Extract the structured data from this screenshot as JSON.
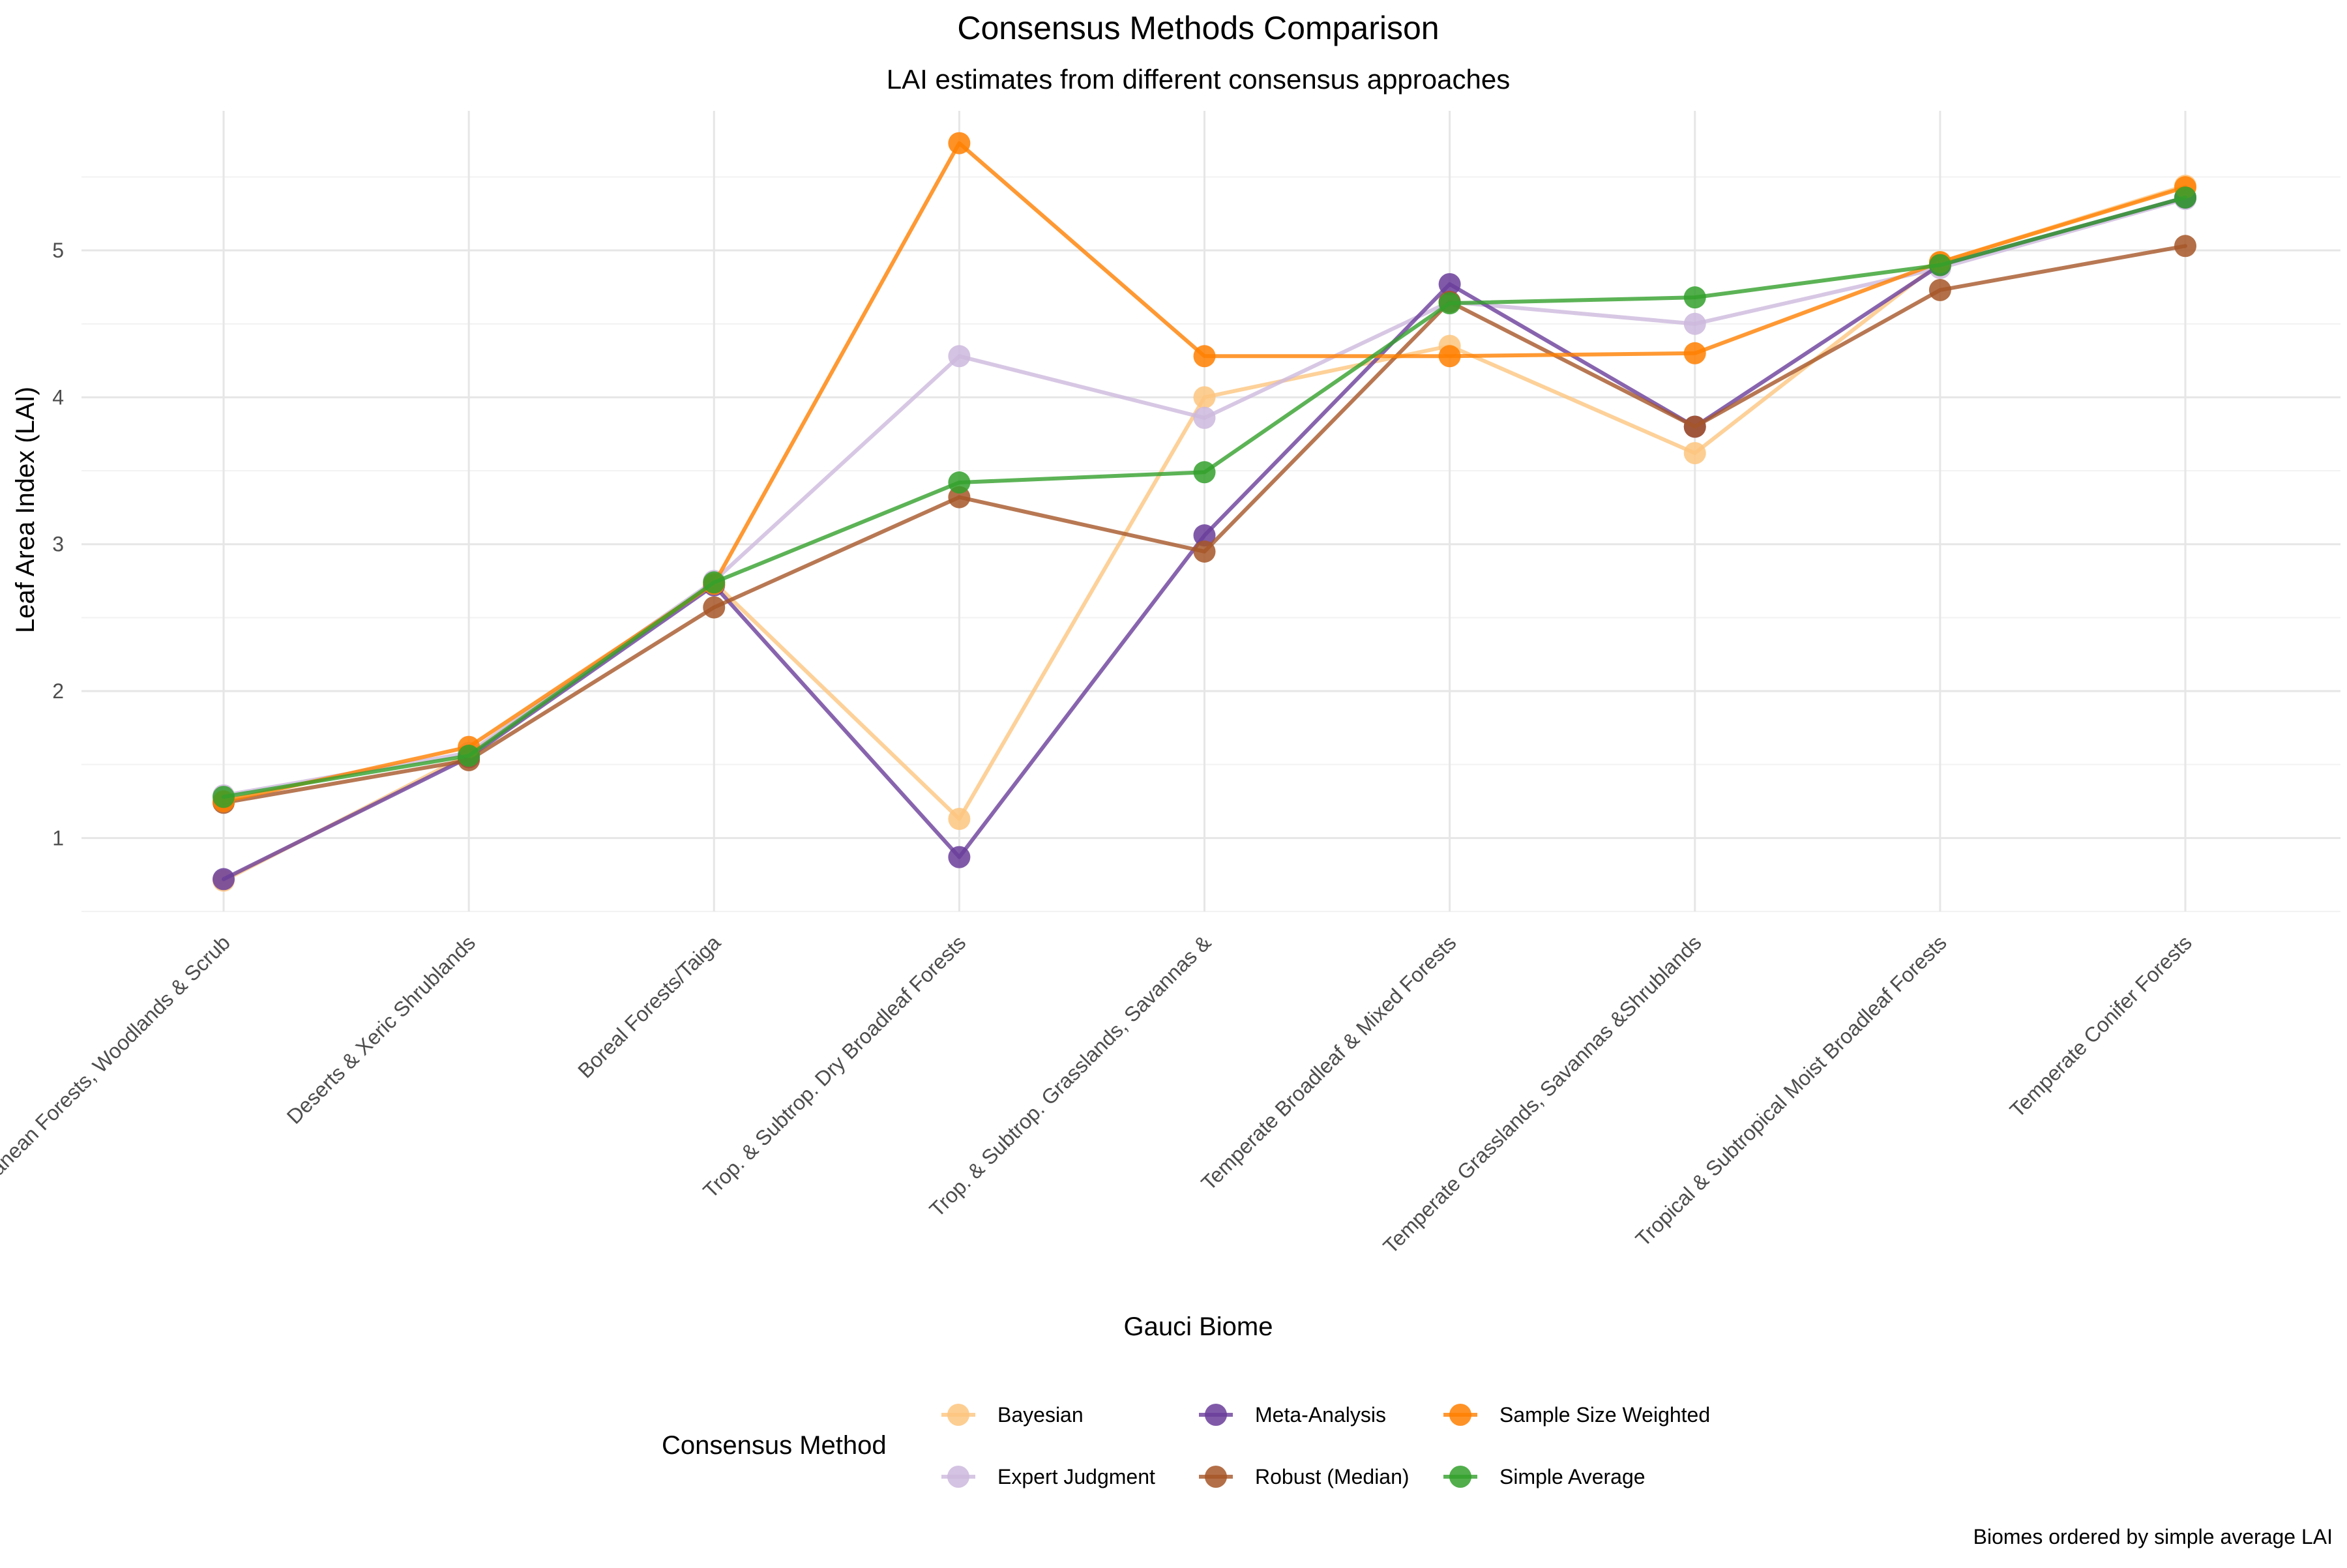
{
  "chart_data": {
    "type": "line",
    "title": "Consensus Methods Comparison",
    "subtitle": "LAI estimates from different consensus approaches",
    "xlabel": "Gauci Biome",
    "ylabel": "Leaf Area Index (LAI)",
    "caption": "Biomes ordered by simple average LAI",
    "legend_title": "Consensus Method",
    "legend_position": "bottom",
    "grid": true,
    "ylim": [
      0.5,
      5.95
    ],
    "yticks": [
      1,
      2,
      3,
      4,
      5
    ],
    "categories": [
      "Mediterranean Forests, Woodlands & Scrub",
      "Deserts & Xeric Shrublands",
      "Boreal Forests/Taiga",
      "Trop. & Subtrop. Dry Broadleaf Forests",
      "Trop. & Subtrop. Grasslands, Savannas &",
      "Temperate Broadleaf & Mixed Forests",
      "Temperate Grasslands, Savannas &Shrublands",
      "Tropical & Subtropical Moist Broadleaf Forests",
      "Temperate Conifer Forests"
    ],
    "series": [
      {
        "name": "Bayesian",
        "color": "#FDC57F",
        "values": [
          0.71,
          1.57,
          2.74,
          1.13,
          4.0,
          4.35,
          3.62,
          4.92,
          5.44
        ]
      },
      {
        "name": "Expert Judgment",
        "color": "#CDB9DD",
        "values": [
          1.29,
          1.58,
          2.75,
          4.28,
          3.86,
          4.65,
          4.5,
          4.88,
          5.35
        ]
      },
      {
        "name": "Meta-Analysis",
        "color": "#6A3D9A",
        "values": [
          0.72,
          1.55,
          2.72,
          0.87,
          3.06,
          4.77,
          3.8,
          4.9,
          5.36
        ]
      },
      {
        "name": "Robust (Median)",
        "color": "#A65628",
        "values": [
          1.24,
          1.53,
          2.57,
          3.32,
          2.95,
          4.65,
          3.8,
          4.73,
          5.03
        ]
      },
      {
        "name": "Sample Size Weighted",
        "color": "#FF7F00",
        "values": [
          1.25,
          1.62,
          2.73,
          5.73,
          4.28,
          4.28,
          4.3,
          4.92,
          5.43
        ]
      },
      {
        "name": "Simple Average",
        "color": "#33A02C",
        "values": [
          1.28,
          1.56,
          2.74,
          3.42,
          3.49,
          4.64,
          4.68,
          4.9,
          5.36
        ]
      }
    ]
  }
}
